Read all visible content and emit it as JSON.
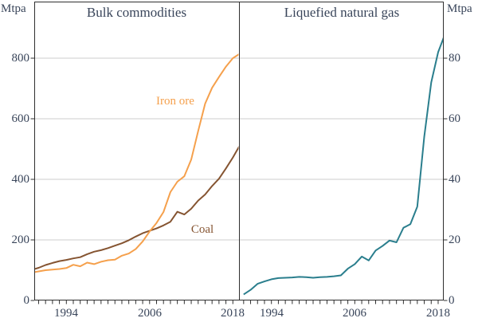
{
  "chart_data": [
    {
      "type": "line",
      "panel": "left",
      "title": "Bulk commodities",
      "unit_label": "Mtpa",
      "ylabel": "Mtpa",
      "ylim": [
        0,
        990
      ],
      "yticks": [
        0,
        200,
        400,
        600,
        800
      ],
      "xtick_labels": [
        "1994",
        "2006",
        "2018"
      ],
      "grid": true,
      "years": [
        1989,
        1990,
        1991,
        1992,
        1993,
        1994,
        1995,
        1996,
        1997,
        1998,
        1999,
        2000,
        2001,
        2002,
        2003,
        2004,
        2005,
        2006,
        2007,
        2008,
        2009,
        2010,
        2011,
        2012,
        2013,
        2014,
        2015,
        2016,
        2017,
        2018,
        2019
      ],
      "series": [
        {
          "id": "iron-ore",
          "label": "Iron ore",
          "color": "#F5A04C",
          "values": [
            92,
            96,
            100,
            102,
            104,
            107,
            118,
            113,
            125,
            120,
            128,
            133,
            135,
            148,
            155,
            170,
            195,
            228,
            256,
            292,
            358,
            392,
            410,
            465,
            560,
            650,
            702,
            738,
            772,
            800,
            815
          ]
        },
        {
          "id": "coal",
          "label": "Coal",
          "color": "#855431",
          "values": [
            101,
            108,
            117,
            124,
            130,
            134,
            139,
            143,
            153,
            161,
            166,
            173,
            181,
            189,
            199,
            211,
            222,
            230,
            238,
            248,
            260,
            293,
            284,
            303,
            330,
            350,
            378,
            402,
            436,
            472,
            512
          ]
        }
      ]
    },
    {
      "type": "line",
      "panel": "right",
      "title": "Liquefied natural gas",
      "unit_label": "Mtpa",
      "ylabel": "Mtpa",
      "ylim": [
        0,
        99
      ],
      "yticks": [
        0,
        20,
        40,
        60,
        80
      ],
      "xtick_labels": [
        "1994",
        "2006",
        "2018"
      ],
      "grid": true,
      "years": [
        1990,
        1991,
        1992,
        1993,
        1994,
        1995,
        1996,
        1997,
        1998,
        1999,
        2000,
        2001,
        2002,
        2003,
        2004,
        2005,
        2006,
        2007,
        2008,
        2009,
        2010,
        2011,
        2012,
        2013,
        2014,
        2015,
        2016,
        2017,
        2018,
        2019
      ],
      "series": [
        {
          "id": "lng",
          "label": "Liquefied natural gas",
          "color": "#2A7E8D",
          "values": [
            2,
            3.5,
            5.5,
            6.3,
            7,
            7.4,
            7.5,
            7.6,
            7.8,
            7.7,
            7.5,
            7.7,
            7.8,
            8,
            8.3,
            10.5,
            12,
            14.5,
            13.2,
            16.5,
            18,
            19.8,
            19.2,
            24,
            25.2,
            31,
            54,
            72,
            82,
            88
          ]
        }
      ]
    }
  ],
  "styles": {
    "grid_color": "#cccccc",
    "axis_color": "#2F2F2F",
    "text_color": "#39455A",
    "background": "#ffffff"
  }
}
